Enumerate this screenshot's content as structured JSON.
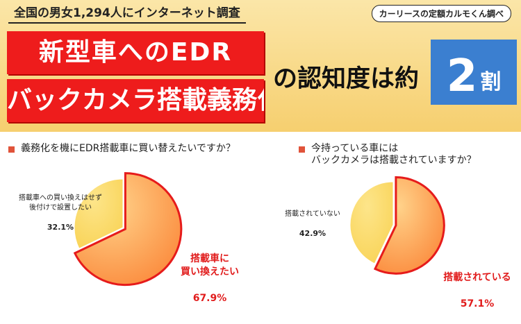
{
  "header": {
    "survey_scope": "全国の男女1,294人にインターネット調査",
    "source": "カーリースの定額カルモくん調べ",
    "title_line1": "新型車へのEDR",
    "title_line2": "バックカメラ搭載義務化",
    "headline": "の認知度は約",
    "ratio_number": "2",
    "ratio_unit": "割"
  },
  "colors": {
    "banner": "#f6cf6f",
    "title_red": "#ee1c1c",
    "ratio_blue": "#3b7fd0",
    "slice_major": "#fb8a3c",
    "slice_minor": "#f9d356",
    "slice_outline": "#e61b1b"
  },
  "chart_data": [
    {
      "type": "pie",
      "title": "義務化を機にEDR搭載車に買い替えたいですか？",
      "slices": [
        {
          "label": "搭載車に\n買い換えたい",
          "value": 67.9,
          "value_text": "67.9%",
          "color": "#fb8a3c",
          "highlighted": true
        },
        {
          "label": "搭載車への買い換えはせず\n後付けで設置したい",
          "value": 32.1,
          "value_text": "32.1%",
          "color": "#f9d356",
          "highlighted": false
        }
      ]
    },
    {
      "type": "pie",
      "title": "今持っている車には\nバックカメラは搭載されていますか？",
      "slices": [
        {
          "label": "搭載されている",
          "value": 57.1,
          "value_text": "57.1%",
          "color": "#fb8a3c",
          "highlighted": true
        },
        {
          "label": "搭載されていない",
          "value": 42.9,
          "value_text": "42.9%",
          "color": "#f9d356",
          "highlighted": false
        }
      ]
    }
  ]
}
